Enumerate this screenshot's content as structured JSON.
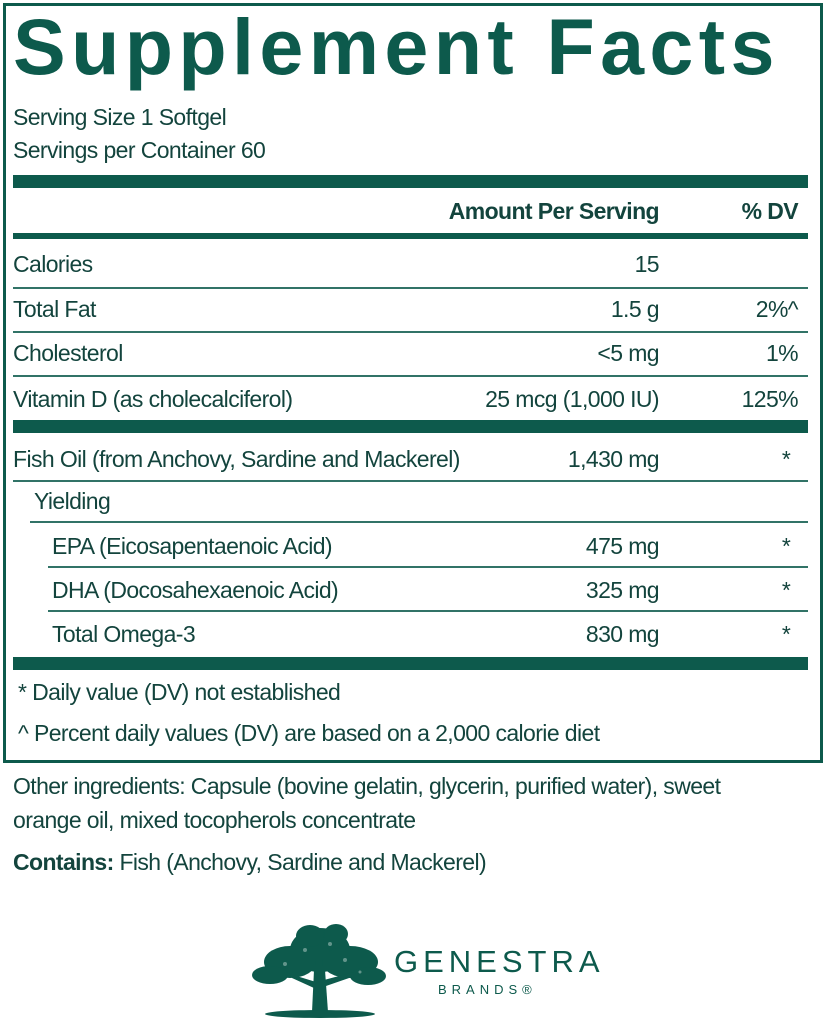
{
  "title": "Supplement Facts",
  "serving_size": "Serving Size 1 Softgel",
  "servings_per_container": "Servings per Container 60",
  "header": {
    "amount": "Amount Per Serving",
    "dv": "% DV"
  },
  "rows": [
    {
      "name": "Calories",
      "amount": "15",
      "dv": ""
    },
    {
      "name": "Total Fat",
      "amount": "1.5 g",
      "dv": "2%^"
    },
    {
      "name": "Cholesterol",
      "amount": "<5 mg",
      "dv": "1%"
    },
    {
      "name": "Vitamin D (as cholecalciferol)",
      "amount": "25 mcg (1,000 IU)",
      "dv": "125%"
    },
    {
      "name": "Fish Oil (from Anchovy, Sardine and Mackerel)",
      "amount": "1,430 mg",
      "dv": "*"
    },
    {
      "name": "Yielding",
      "amount": "",
      "dv": ""
    },
    {
      "name": "EPA (Eicosapentaenoic Acid)",
      "amount": "475 mg",
      "dv": "*"
    },
    {
      "name": "DHA (Docosahexaenoic Acid)",
      "amount": "325 mg",
      "dv": "*"
    },
    {
      "name": "Total Omega-3",
      "amount": "830 mg",
      "dv": "*"
    }
  ],
  "footnotes": [
    "* Daily value (DV) not established",
    "^ Percent daily values (DV) are based on a 2,000 calorie diet"
  ],
  "other_ingredients": [
    "Other ingredients: Capsule (bovine gelatin, glycerin, purified water), sweet",
    "orange oil, mixed tocopherols concentrate"
  ],
  "contains": {
    "label": "Contains:",
    "value": " Fish (Anchovy, Sardine and Mackerel)"
  },
  "brand": {
    "name": "GENESTRA",
    "sub": "BRANDS®",
    "icon": "oak-tree-icon",
    "color": "#0d5a4c"
  }
}
